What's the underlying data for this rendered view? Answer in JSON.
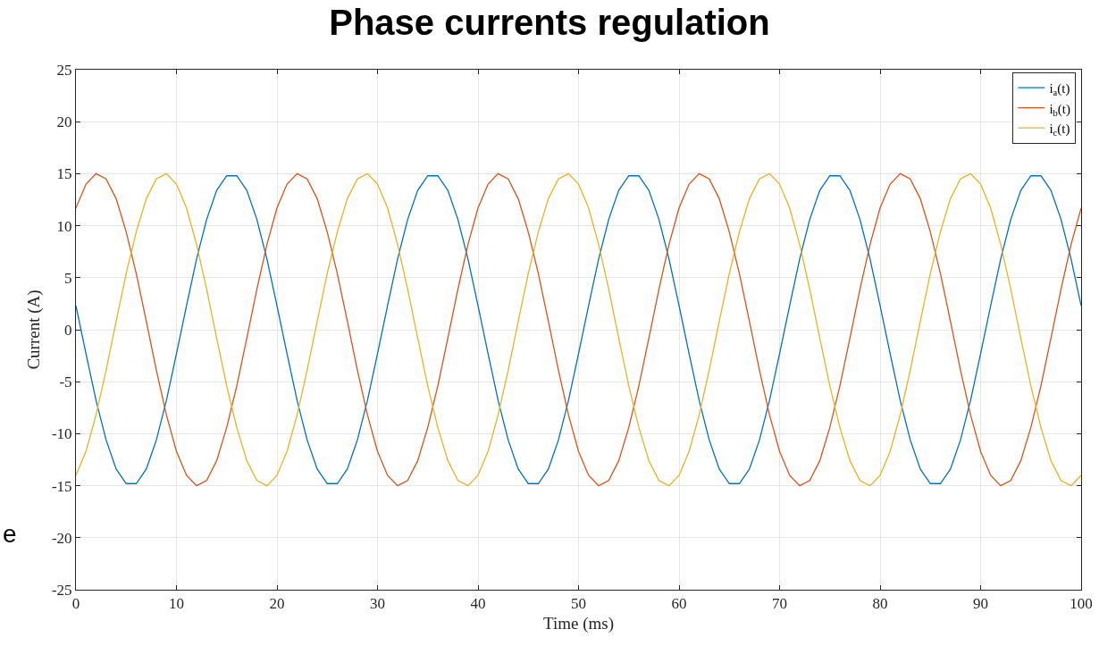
{
  "chart_data": {
    "type": "line",
    "title": "Phase currents regulation",
    "xlabel": "Time (ms)",
    "ylabel": "Current (A)",
    "x": [
      0,
      1,
      2,
      3,
      4,
      5,
      6,
      7,
      8,
      9,
      10,
      11,
      12,
      13,
      14,
      15,
      16,
      17,
      18,
      19,
      20,
      21,
      22,
      23,
      24,
      25,
      26,
      27,
      28,
      29,
      30,
      31,
      32,
      33,
      34,
      35,
      36,
      37,
      38,
      39,
      40,
      41,
      42,
      43,
      44,
      45,
      46,
      47,
      48,
      49,
      50,
      51,
      52,
      53,
      54,
      55,
      56,
      57,
      58,
      59,
      60,
      61,
      62,
      63,
      64,
      65,
      66,
      67,
      68,
      69,
      70,
      71,
      72,
      73,
      74,
      75,
      76,
      77,
      78,
      79,
      80,
      81,
      82,
      83,
      84,
      85,
      86,
      87,
      88,
      89,
      90,
      91,
      92,
      93,
      94,
      95,
      96,
      97,
      98,
      99,
      100
    ],
    "series": [
      {
        "name": "i$_{a}$(t)",
        "color": "#0072bd",
        "values": [
          2.3,
          -2.3,
          -6.8,
          -10.6,
          -13.4,
          -14.8,
          -14.8,
          -13.4,
          -10.6,
          -6.8,
          -2.3,
          2.3,
          6.8,
          10.6,
          13.4,
          14.8,
          14.8,
          13.4,
          10.6,
          6.8,
          2.3,
          -2.3,
          -6.8,
          -10.6,
          -13.4,
          -14.8,
          -14.8,
          -13.4,
          -10.6,
          -6.8,
          -2.3,
          2.3,
          6.8,
          10.6,
          13.4,
          14.8,
          14.8,
          13.4,
          10.6,
          6.8,
          2.3,
          -2.3,
          -6.8,
          -10.6,
          -13.4,
          -14.8,
          -14.8,
          -13.4,
          -10.6,
          -6.8,
          -2.3,
          2.3,
          6.8,
          10.6,
          13.4,
          14.8,
          14.8,
          13.4,
          10.6,
          6.8,
          2.3,
          -2.3,
          -6.8,
          -10.6,
          -13.4,
          -14.8,
          -14.8,
          -13.4,
          -10.6,
          -6.8,
          -2.3,
          2.3,
          6.8,
          10.6,
          13.4,
          14.8,
          14.8,
          13.4,
          10.6,
          6.8,
          2.3,
          -2.3,
          -6.8,
          -10.6,
          -13.4,
          -14.8,
          -14.8,
          -13.4,
          -10.6,
          -6.8,
          -2.3,
          2.3,
          6.8,
          10.6,
          13.4,
          14.8,
          14.8,
          13.4,
          10.6,
          6.8,
          2.3
        ]
      },
      {
        "name": "i$_{b}$(t)",
        "color": "#d95319",
        "values": [
          11.7,
          14.0,
          15.0,
          14.5,
          12.6,
          9.4,
          5.4,
          0.8,
          -3.9,
          -8.2,
          -11.7,
          -14.0,
          -15.0,
          -14.5,
          -12.6,
          -9.4,
          -5.4,
          -0.8,
          3.9,
          8.2,
          11.7,
          14.0,
          15.0,
          14.5,
          12.6,
          9.4,
          5.4,
          0.8,
          -3.9,
          -8.2,
          -11.7,
          -14.0,
          -15.0,
          -14.5,
          -12.6,
          -9.4,
          -5.4,
          -0.8,
          3.9,
          8.2,
          11.7,
          14.0,
          15.0,
          14.5,
          12.6,
          9.4,
          5.4,
          0.8,
          -3.9,
          -8.2,
          -11.7,
          -14.0,
          -15.0,
          -14.5,
          -12.6,
          -9.4,
          -5.4,
          -0.8,
          3.9,
          8.2,
          11.7,
          14.0,
          15.0,
          14.5,
          12.6,
          9.4,
          5.4,
          0.8,
          -3.9,
          -8.2,
          -11.7,
          -14.0,
          -15.0,
          -14.5,
          -12.6,
          -9.4,
          -5.4,
          -0.8,
          3.9,
          8.2,
          11.7,
          14.0,
          15.0,
          14.5,
          12.6,
          9.4,
          5.4,
          0.8,
          -3.9,
          -8.2,
          -11.7,
          -14.0,
          -15.0,
          -14.5,
          -12.6,
          -9.4,
          -5.4,
          -0.8,
          3.9,
          8.2,
          11.7
        ]
      },
      {
        "name": "i$_{c}$(t)",
        "color": "#edb120",
        "values": [
          -14.0,
          -11.7,
          -8.2,
          -3.9,
          0.8,
          5.4,
          9.4,
          12.6,
          14.5,
          15.0,
          14.0,
          11.7,
          8.2,
          3.9,
          -0.8,
          -5.4,
          -9.4,
          -12.6,
          -14.5,
          -15.0,
          -14.0,
          -11.7,
          -8.2,
          -3.9,
          0.8,
          5.4,
          9.4,
          12.6,
          14.5,
          15.0,
          14.0,
          11.7,
          8.2,
          3.9,
          -0.8,
          -5.4,
          -9.4,
          -12.6,
          -14.5,
          -15.0,
          -14.0,
          -11.7,
          -8.2,
          -3.9,
          0.8,
          5.4,
          9.4,
          12.6,
          14.5,
          15.0,
          14.0,
          11.7,
          8.2,
          3.9,
          -0.8,
          -5.4,
          -9.4,
          -12.6,
          -14.5,
          -15.0,
          -14.0,
          -11.7,
          -8.2,
          -3.9,
          0.8,
          5.4,
          9.4,
          12.6,
          14.5,
          15.0,
          14.0,
          11.7,
          8.2,
          3.9,
          -0.8,
          -5.4,
          -9.4,
          -12.6,
          -14.5,
          -15.0,
          -14.0,
          -11.7,
          -8.2,
          -3.9,
          0.8,
          5.4,
          9.4,
          12.6,
          14.5,
          15.0,
          14.0,
          11.7,
          8.2,
          3.9,
          -0.8,
          -5.4,
          -9.4,
          -12.6,
          -14.5,
          -15.0,
          -14.0
        ]
      }
    ],
    "xlim": [
      0,
      100
    ],
    "xticks": [
      0,
      10,
      20,
      30,
      40,
      50,
      60,
      70,
      80,
      90,
      100
    ],
    "ylim": [
      -25,
      25
    ],
    "yticks": [
      -25,
      -20,
      -15,
      -10,
      -5,
      0,
      5,
      10,
      15,
      20,
      25
    ],
    "grid": true,
    "legend": "top right",
    "marker": "none",
    "line_style": "solid",
    "annotations": [
      "e"
    ]
  }
}
